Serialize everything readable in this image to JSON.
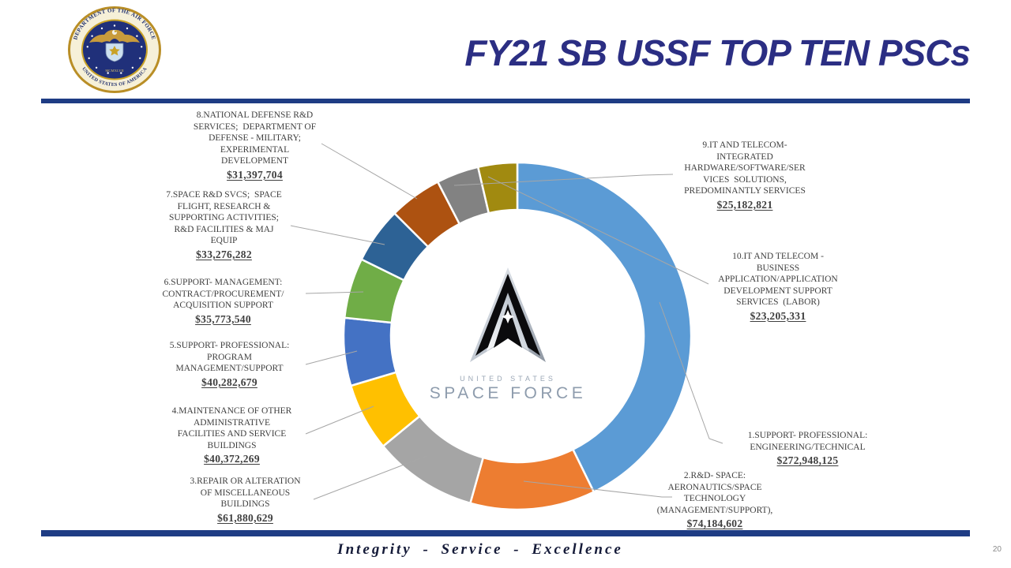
{
  "header": {
    "title": "FY21 SB USSF TOP TEN PSCs"
  },
  "seal": {
    "top_text": "DEPARTMENT OF THE AIR FORCE",
    "bottom_text": "UNITED STATES OF AMERICA",
    "year_text": "MCMXLVII"
  },
  "center_logo": {
    "line1": "UNITED STATES",
    "line2": "SPACE FORCE"
  },
  "footer": {
    "motto": "Integrity - Service - Excellence",
    "page_number": "20"
  },
  "chart_data": {
    "type": "pie",
    "subtype": "donut",
    "title": "FY21 SB USSF TOP TEN PSCs",
    "direction": "clockwise",
    "start_angle_deg": 0,
    "total": 638503982,
    "slices": [
      {
        "rank": 1,
        "label": "1.SUPPORT- PROFESSIONAL:\nENGINEERING/TECHNICAL",
        "amount": "$272,948,125",
        "value": 272948125,
        "color": "#5B9BD5"
      },
      {
        "rank": 2,
        "label": "2.R&D- SPACE:\nAERONAUTICS/SPACE\nTECHNOLOGY\n(MANAGEMENT/SUPPORT),",
        "amount": "$74,184,602",
        "value": 74184602,
        "color": "#ED7D31"
      },
      {
        "rank": 3,
        "label": "3.REPAIR OR ALTERATION\nOF MISCELLANEOUS\nBUILDINGS",
        "amount": "$61,880,629",
        "value": 61880629,
        "color": "#A5A5A5"
      },
      {
        "rank": 4,
        "label": "4.MAINTENANCE OF OTHER\nADMINISTRATIVE\nFACILITIES AND SERVICE\nBUILDINGS",
        "amount": "$40,372,269",
        "value": 40372269,
        "color": "#FFC000"
      },
      {
        "rank": 5,
        "label": "5.SUPPORT- PROFESSIONAL:\nPROGRAM\nMANAGEMENT/SUPPORT",
        "amount": "$40,282,679",
        "value": 40282679,
        "color": "#4472C4"
      },
      {
        "rank": 6,
        "label": "6.SUPPORT- MANAGEMENT:\nCONTRACT/PROCUREMENT/\nACQUISITION SUPPORT",
        "amount": "$35,773,540",
        "value": 35773540,
        "color": "#70AD47"
      },
      {
        "rank": 7,
        "label": "7.SPACE R&D SVCS;  SPACE\nFLIGHT, RESEARCH &\nSUPPORTING ACTIVITIES;\nR&D FACILITIES & MAJ\nEQUIP",
        "amount": "$33,276,282",
        "value": 33276282,
        "color": "#2D6295"
      },
      {
        "rank": 8,
        "label": "8.NATIONAL DEFENSE R&D\nSERVICES;  DEPARTMENT OF\nDEFENSE - MILITARY;\nEXPERIMENTAL\nDEVELOPMENT",
        "amount": "$31,397,704",
        "value": 31397704,
        "color": "#AD5211"
      },
      {
        "rank": 9,
        "label": "9.IT AND TELECOM-\nINTEGRATED\nHARDWARE/SOFTWARE/SER\nVICES  SOLUTIONS,\nPREDOMINANTLY SERVICES",
        "amount": "$25,182,821",
        "value": 25182821,
        "color": "#828282"
      },
      {
        "rank": 10,
        "label": "10.IT AND TELECOM -\nBUSINESS\nAPPLICATION/APPLICATION\nDEVELOPMENT SUPPORT\nSERVICES  (LABOR)",
        "amount": "$23,205,331",
        "value": 23205331,
        "color": "#A18A10"
      }
    ],
    "leader_line_color": "#A6A6A6",
    "label_color": "#3F3F3F"
  }
}
